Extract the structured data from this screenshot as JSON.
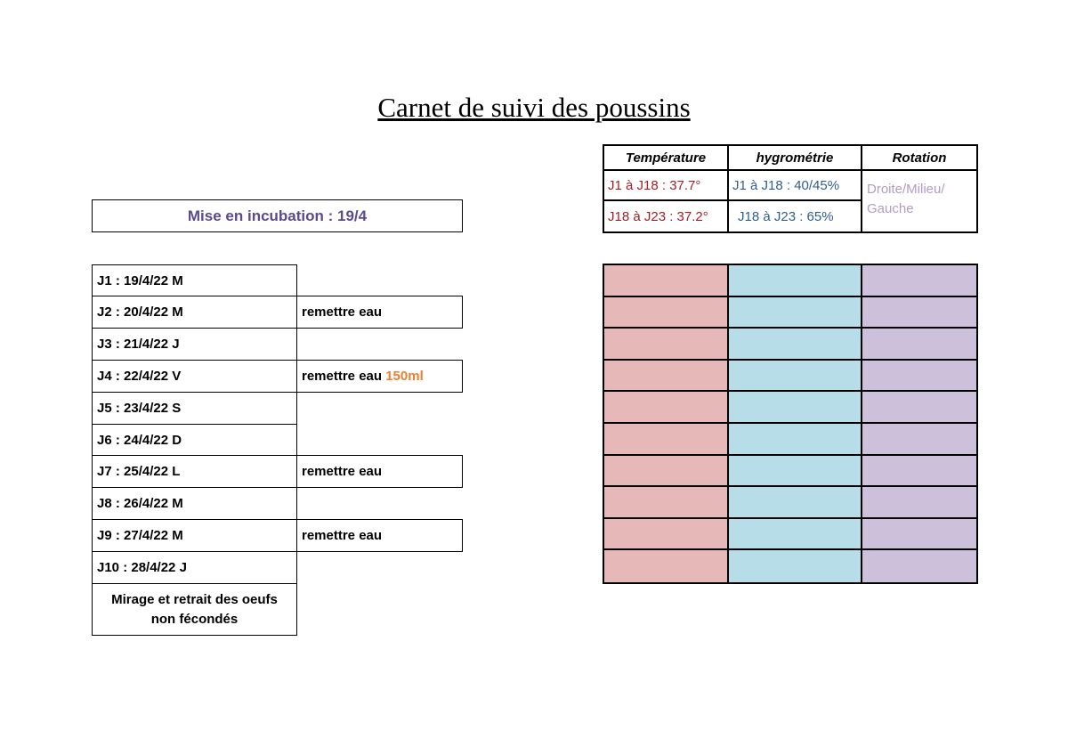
{
  "title": "Carnet de suivi des poussins",
  "incubation": "Mise en incubation : 19/4",
  "days": [
    {
      "label": "J1 : 19/4/22 M",
      "note": "",
      "note_extra": ""
    },
    {
      "label": "J2 : 20/4/22 M",
      "note": "remettre eau",
      "note_extra": ""
    },
    {
      "label": "J3 : 21/4/22 J",
      "note": "",
      "note_extra": ""
    },
    {
      "label": "J4 : 22/4/22 V",
      "note": "remettre eau",
      "note_extra": "150ml"
    },
    {
      "label": "J5 : 23/4/22 S",
      "note": "",
      "note_extra": ""
    },
    {
      "label": "J6 : 24/4/22 D",
      "note": "",
      "note_extra": ""
    },
    {
      "label": "J7 : 25/4/22 L",
      "note": "remettre eau",
      "note_extra": ""
    },
    {
      "label": "J8 : 26/4/22 M",
      "note": "",
      "note_extra": ""
    },
    {
      "label": "J9 : 27/4/22 M",
      "note": "remettre eau",
      "note_extra": ""
    },
    {
      "label": "J10 : 28/4/22 J",
      "note": "",
      "note_extra": ""
    }
  ],
  "mirage": {
    "line1": "Mirage et retrait des oeufs",
    "line2": "non fécondés"
  },
  "settings": {
    "headers": [
      "Température",
      "hygrométrie",
      "Rotation"
    ],
    "temperature": [
      "J1 à J18 : 37.7°",
      "J18 à J23 : 37.2°"
    ],
    "humidity": [
      "J1 à J18 : 40/45%",
      "J18 à J23 : 65%"
    ],
    "rotation": [
      "Droite/Milieu/",
      "Gauche"
    ]
  },
  "colors": {
    "temperature": "#e6b8b7",
    "humidity": "#b7dde8",
    "rotation": "#ccc0da",
    "incubation_text": "#5b4a8c",
    "accent_orange": "#ed7d31"
  },
  "tracking_rows": 10
}
